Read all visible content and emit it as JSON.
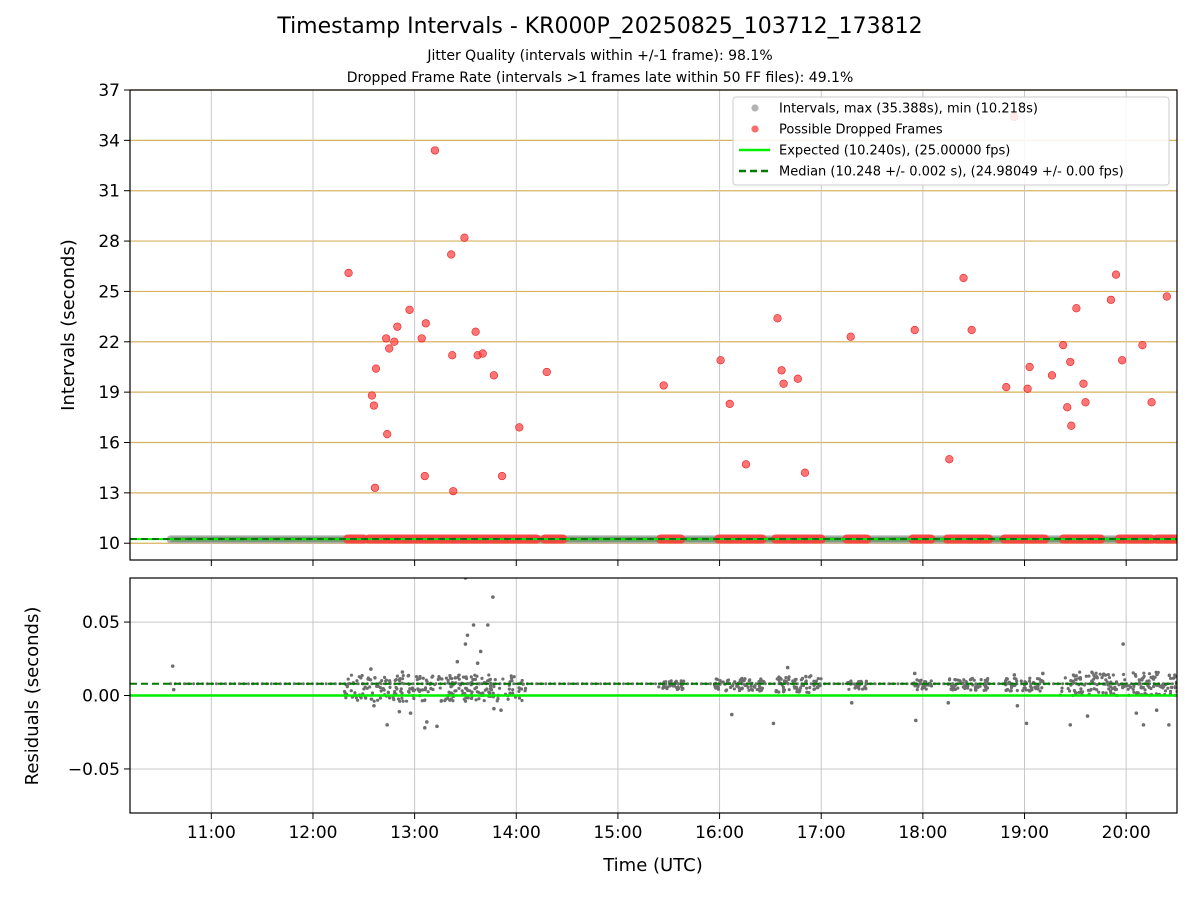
{
  "title": "Timestamp Intervals - KR000P_20250825_103712_173812",
  "subtitle_lines": [
    "Jitter Quality (intervals within +/-1 frame): 98.1%",
    "Dropped Frame Rate (intervals >1 frames late within 50 FF files): 49.1%"
  ],
  "colors": {
    "intervals": "#a0a0a0",
    "dropped": "#ff3b3b",
    "expected": "#00ee00",
    "median": "#007a00",
    "hgrid_top": "#d8b25f",
    "grid": "#c8c8c8",
    "residual_points": "#6e6e6e"
  },
  "chart_data": [
    {
      "type": "scatter",
      "name": "intervals-panel",
      "ylabel": "Intervals (seconds)",
      "ylim": [
        9,
        37
      ],
      "xlim": [
        10.2,
        20.5
      ],
      "yticks": [
        10,
        13,
        16,
        19,
        22,
        25,
        28,
        31,
        34,
        37
      ],
      "grid": true,
      "legend_position": "top-right",
      "legend": [
        "Intervals, max (35.388s), min (10.218s)",
        "Possible Dropped Frames",
        "Expected (10.240s), (25.00000 fps)",
        "Median (10.248 +/- 0.002 s), (24.98049 +/- 0.00 fps)"
      ],
      "expected": 10.24,
      "median": 10.248,
      "interval_baseline_band": [
        10.6,
        20.5
      ],
      "dropped_baseline_segments": [
        [
          12.34,
          12.5
        ],
        [
          12.55,
          14.2
        ],
        [
          14.28,
          14.46
        ],
        [
          15.42,
          15.62
        ],
        [
          15.99,
          16.42
        ],
        [
          16.55,
          17.0
        ],
        [
          17.25,
          17.45
        ],
        [
          17.9,
          18.08
        ],
        [
          18.24,
          18.65
        ],
        [
          18.8,
          19.2
        ],
        [
          19.38,
          19.75
        ],
        [
          19.93,
          20.25
        ],
        [
          20.3,
          20.5
        ]
      ],
      "dropped_points": [
        [
          12.35,
          26.1
        ],
        [
          12.58,
          18.8
        ],
        [
          12.6,
          18.2
        ],
        [
          12.61,
          13.3
        ],
        [
          12.62,
          20.4
        ],
        [
          12.72,
          22.2
        ],
        [
          12.73,
          16.5
        ],
        [
          12.75,
          21.6
        ],
        [
          12.8,
          22.0
        ],
        [
          12.83,
          22.9
        ],
        [
          12.95,
          23.9
        ],
        [
          13.07,
          22.2
        ],
        [
          13.1,
          14.0
        ],
        [
          13.11,
          23.1
        ],
        [
          13.2,
          33.4
        ],
        [
          13.36,
          27.2
        ],
        [
          13.37,
          21.2
        ],
        [
          13.38,
          13.1
        ],
        [
          13.49,
          28.2
        ],
        [
          13.6,
          22.6
        ],
        [
          13.62,
          21.2
        ],
        [
          13.67,
          21.3
        ],
        [
          13.78,
          20.0
        ],
        [
          13.86,
          14.0
        ],
        [
          14.03,
          16.9
        ],
        [
          14.3,
          20.2
        ],
        [
          15.45,
          19.4
        ],
        [
          16.01,
          20.9
        ],
        [
          16.1,
          18.3
        ],
        [
          16.26,
          14.7
        ],
        [
          16.57,
          23.4
        ],
        [
          16.61,
          20.3
        ],
        [
          16.63,
          19.5
        ],
        [
          16.77,
          19.8
        ],
        [
          16.84,
          14.2
        ],
        [
          17.29,
          22.3
        ],
        [
          17.92,
          22.7
        ],
        [
          18.26,
          15.0
        ],
        [
          18.4,
          25.8
        ],
        [
          18.48,
          22.7
        ],
        [
          18.82,
          19.3
        ],
        [
          18.9,
          35.4
        ],
        [
          19.03,
          19.2
        ],
        [
          19.05,
          20.5
        ],
        [
          19.27,
          20.0
        ],
        [
          19.38,
          21.8
        ],
        [
          19.42,
          18.1
        ],
        [
          19.45,
          20.8
        ],
        [
          19.46,
          17.0
        ],
        [
          19.51,
          24.0
        ],
        [
          19.58,
          19.5
        ],
        [
          19.6,
          18.4
        ],
        [
          19.85,
          24.5
        ],
        [
          19.9,
          26.0
        ],
        [
          19.96,
          20.9
        ],
        [
          20.16,
          21.8
        ],
        [
          20.25,
          18.4
        ],
        [
          20.4,
          24.7
        ]
      ]
    },
    {
      "type": "scatter",
      "name": "residuals-panel",
      "xlabel": "Time (UTC)",
      "ylabel": "Residuals (seconds)",
      "ylim": [
        -0.08,
        0.08
      ],
      "xlim": [
        10.2,
        20.5
      ],
      "xticks": [
        11,
        12,
        13,
        14,
        15,
        16,
        17,
        18,
        19,
        20
      ],
      "xtick_labels": [
        "11:00",
        "12:00",
        "13:00",
        "14:00",
        "15:00",
        "16:00",
        "17:00",
        "18:00",
        "19:00",
        "20:00"
      ],
      "yticks": [
        0.05,
        0.0,
        -0.05
      ],
      "ytick_labels": [
        "0.05",
        "0.00",
        "−0.05"
      ],
      "grid": true,
      "expected_line": 0.0,
      "median_line": 0.008,
      "baseline_value": 0.008,
      "outlier_points": [
        [
          10.62,
          0.02
        ],
        [
          10.63,
          0.004
        ],
        [
          12.32,
          0.0
        ],
        [
          12.57,
          0.018
        ],
        [
          12.6,
          -0.007
        ],
        [
          12.73,
          -0.02
        ],
        [
          12.85,
          -0.011
        ],
        [
          12.88,
          0.016
        ],
        [
          12.96,
          -0.012
        ],
        [
          13.1,
          -0.022
        ],
        [
          13.12,
          -0.018
        ],
        [
          13.22,
          -0.021
        ],
        [
          13.4,
          0.012
        ],
        [
          13.42,
          0.023
        ],
        [
          13.52,
          0.041
        ],
        [
          13.5,
          0.035
        ],
        [
          13.58,
          0.048
        ],
        [
          13.65,
          0.03
        ],
        [
          13.72,
          0.048
        ],
        [
          13.77,
          0.067
        ],
        [
          13.78,
          -0.009
        ],
        [
          13.85,
          -0.01
        ],
        [
          13.5,
          0.08
        ],
        [
          13.62,
          0.022
        ],
        [
          16.12,
          -0.013
        ],
        [
          16.53,
          -0.019
        ],
        [
          16.67,
          0.019
        ],
        [
          17.3,
          -0.005
        ],
        [
          17.92,
          0.015
        ],
        [
          17.93,
          -0.017
        ],
        [
          18.25,
          -0.005
        ],
        [
          18.9,
          0.014
        ],
        [
          18.93,
          -0.007
        ],
        [
          19.02,
          -0.019
        ],
        [
          19.18,
          0.015
        ],
        [
          19.45,
          -0.02
        ],
        [
          19.62,
          -0.014
        ],
        [
          19.97,
          0.035
        ],
        [
          20.1,
          -0.012
        ],
        [
          20.17,
          -0.02
        ],
        [
          20.3,
          -0.01
        ],
        [
          20.42,
          -0.02
        ]
      ],
      "cluster_bands": [
        {
          "x": [
            12.3,
            14.1
          ],
          "y": [
            -0.004,
            0.014
          ]
        },
        {
          "x": [
            15.4,
            15.65
          ],
          "y": [
            0.004,
            0.01
          ]
        },
        {
          "x": [
            15.95,
            16.45
          ],
          "y": [
            0.003,
            0.012
          ]
        },
        {
          "x": [
            16.55,
            17.0
          ],
          "y": [
            0.002,
            0.014
          ]
        },
        {
          "x": [
            17.25,
            17.45
          ],
          "y": [
            0.004,
            0.01
          ]
        },
        {
          "x": [
            17.9,
            18.1
          ],
          "y": [
            0.004,
            0.011
          ]
        },
        {
          "x": [
            18.25,
            18.65
          ],
          "y": [
            0.003,
            0.012
          ]
        },
        {
          "x": [
            18.8,
            19.2
          ],
          "y": [
            0.003,
            0.012
          ]
        },
        {
          "x": [
            19.35,
            20.5
          ],
          "y": [
            0.0,
            0.016
          ]
        }
      ]
    }
  ]
}
